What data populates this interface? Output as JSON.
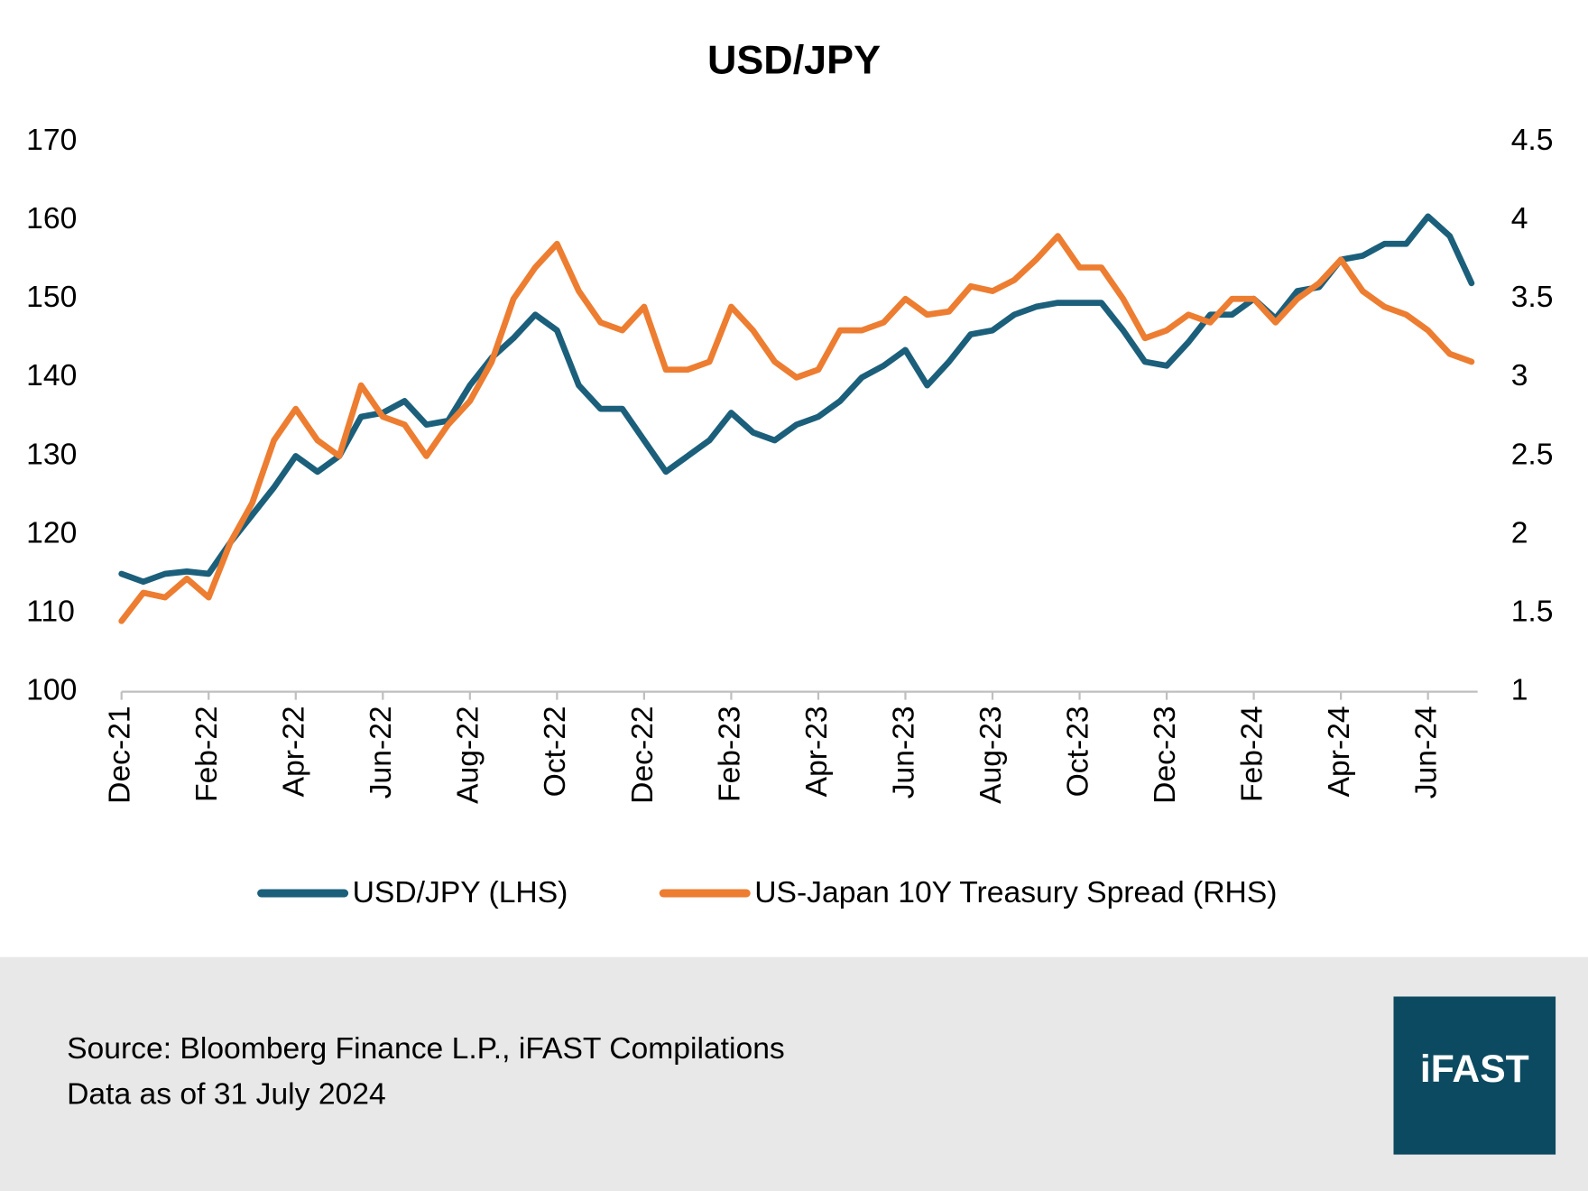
{
  "chart_data": {
    "type": "line",
    "title": "USD/JPY",
    "categories": [
      "Dec-21",
      null,
      null,
      null,
      "Feb-22",
      null,
      null,
      null,
      "Apr-22",
      null,
      null,
      null,
      "Jun-22",
      null,
      null,
      null,
      "Aug-22",
      null,
      null,
      null,
      "Oct-22",
      null,
      null,
      null,
      "Dec-22",
      null,
      null,
      null,
      "Feb-23",
      null,
      null,
      null,
      "Apr-23",
      null,
      null,
      null,
      "Jun-23",
      null,
      null,
      null,
      "Aug-23",
      null,
      null,
      null,
      "Oct-23",
      null,
      null,
      null,
      "Dec-23",
      null,
      null,
      null,
      "Feb-24",
      null,
      null,
      null,
      "Apr-24",
      null,
      null,
      null,
      "Jun-24",
      null,
      null
    ],
    "series": [
      {
        "name": "USD/JPY (LHS)",
        "color": "#1b5f7b",
        "values": [
          115,
          114,
          115,
          115.3,
          115,
          119,
          122.5,
          126,
          130,
          128,
          130,
          135,
          135.5,
          137,
          134,
          134.5,
          139,
          142.5,
          145,
          148,
          146,
          139,
          136,
          136,
          132,
          128,
          130,
          132,
          135.5,
          133,
          132,
          134,
          135,
          137,
          140,
          141.5,
          143.5,
          139,
          142,
          145.5,
          146,
          148,
          149,
          149.5,
          149.5,
          149.5,
          146,
          142,
          141.5,
          144.5,
          148,
          148,
          150,
          147.5,
          151,
          151.5,
          155,
          155.5,
          157,
          157,
          160.5,
          158,
          152
        ]
      },
      {
        "name": "US-Japan 10Y Treasury Spread (RHS)",
        "color": "#ed7d31",
        "axis": "y2",
        "values": [
          1.45,
          1.63,
          1.6,
          1.72,
          1.6,
          1.95,
          2.2,
          2.6,
          2.8,
          2.6,
          2.5,
          2.95,
          2.75,
          2.7,
          2.5,
          2.7,
          2.85,
          3.1,
          3.5,
          3.7,
          3.85,
          3.55,
          3.35,
          3.3,
          3.45,
          3.05,
          3.05,
          3.1,
          3.45,
          3.3,
          3.1,
          3.0,
          3.05,
          3.3,
          3.3,
          3.35,
          3.5,
          3.4,
          3.42,
          3.58,
          3.55,
          3.62,
          3.75,
          3.9,
          3.7,
          3.7,
          3.5,
          3.25,
          3.3,
          3.4,
          3.35,
          3.5,
          3.5,
          3.35,
          3.5,
          3.6,
          3.75,
          3.55,
          3.45,
          3.4,
          3.3,
          3.15,
          3.1
        ]
      }
    ],
    "ylim": [
      100,
      170
    ],
    "yticks": [
      100,
      110,
      120,
      130,
      140,
      150,
      160,
      170
    ],
    "y2lim": [
      1,
      4.5
    ],
    "y2ticks": [
      1,
      1.5,
      2,
      2.5,
      3,
      3.5,
      4,
      4.5
    ],
    "legend": "bottom"
  },
  "footer": {
    "source": "Source: Bloomberg Finance L.P., iFAST Compilations",
    "note": "Data as of 31 July 2024",
    "logo": "iFAST"
  }
}
